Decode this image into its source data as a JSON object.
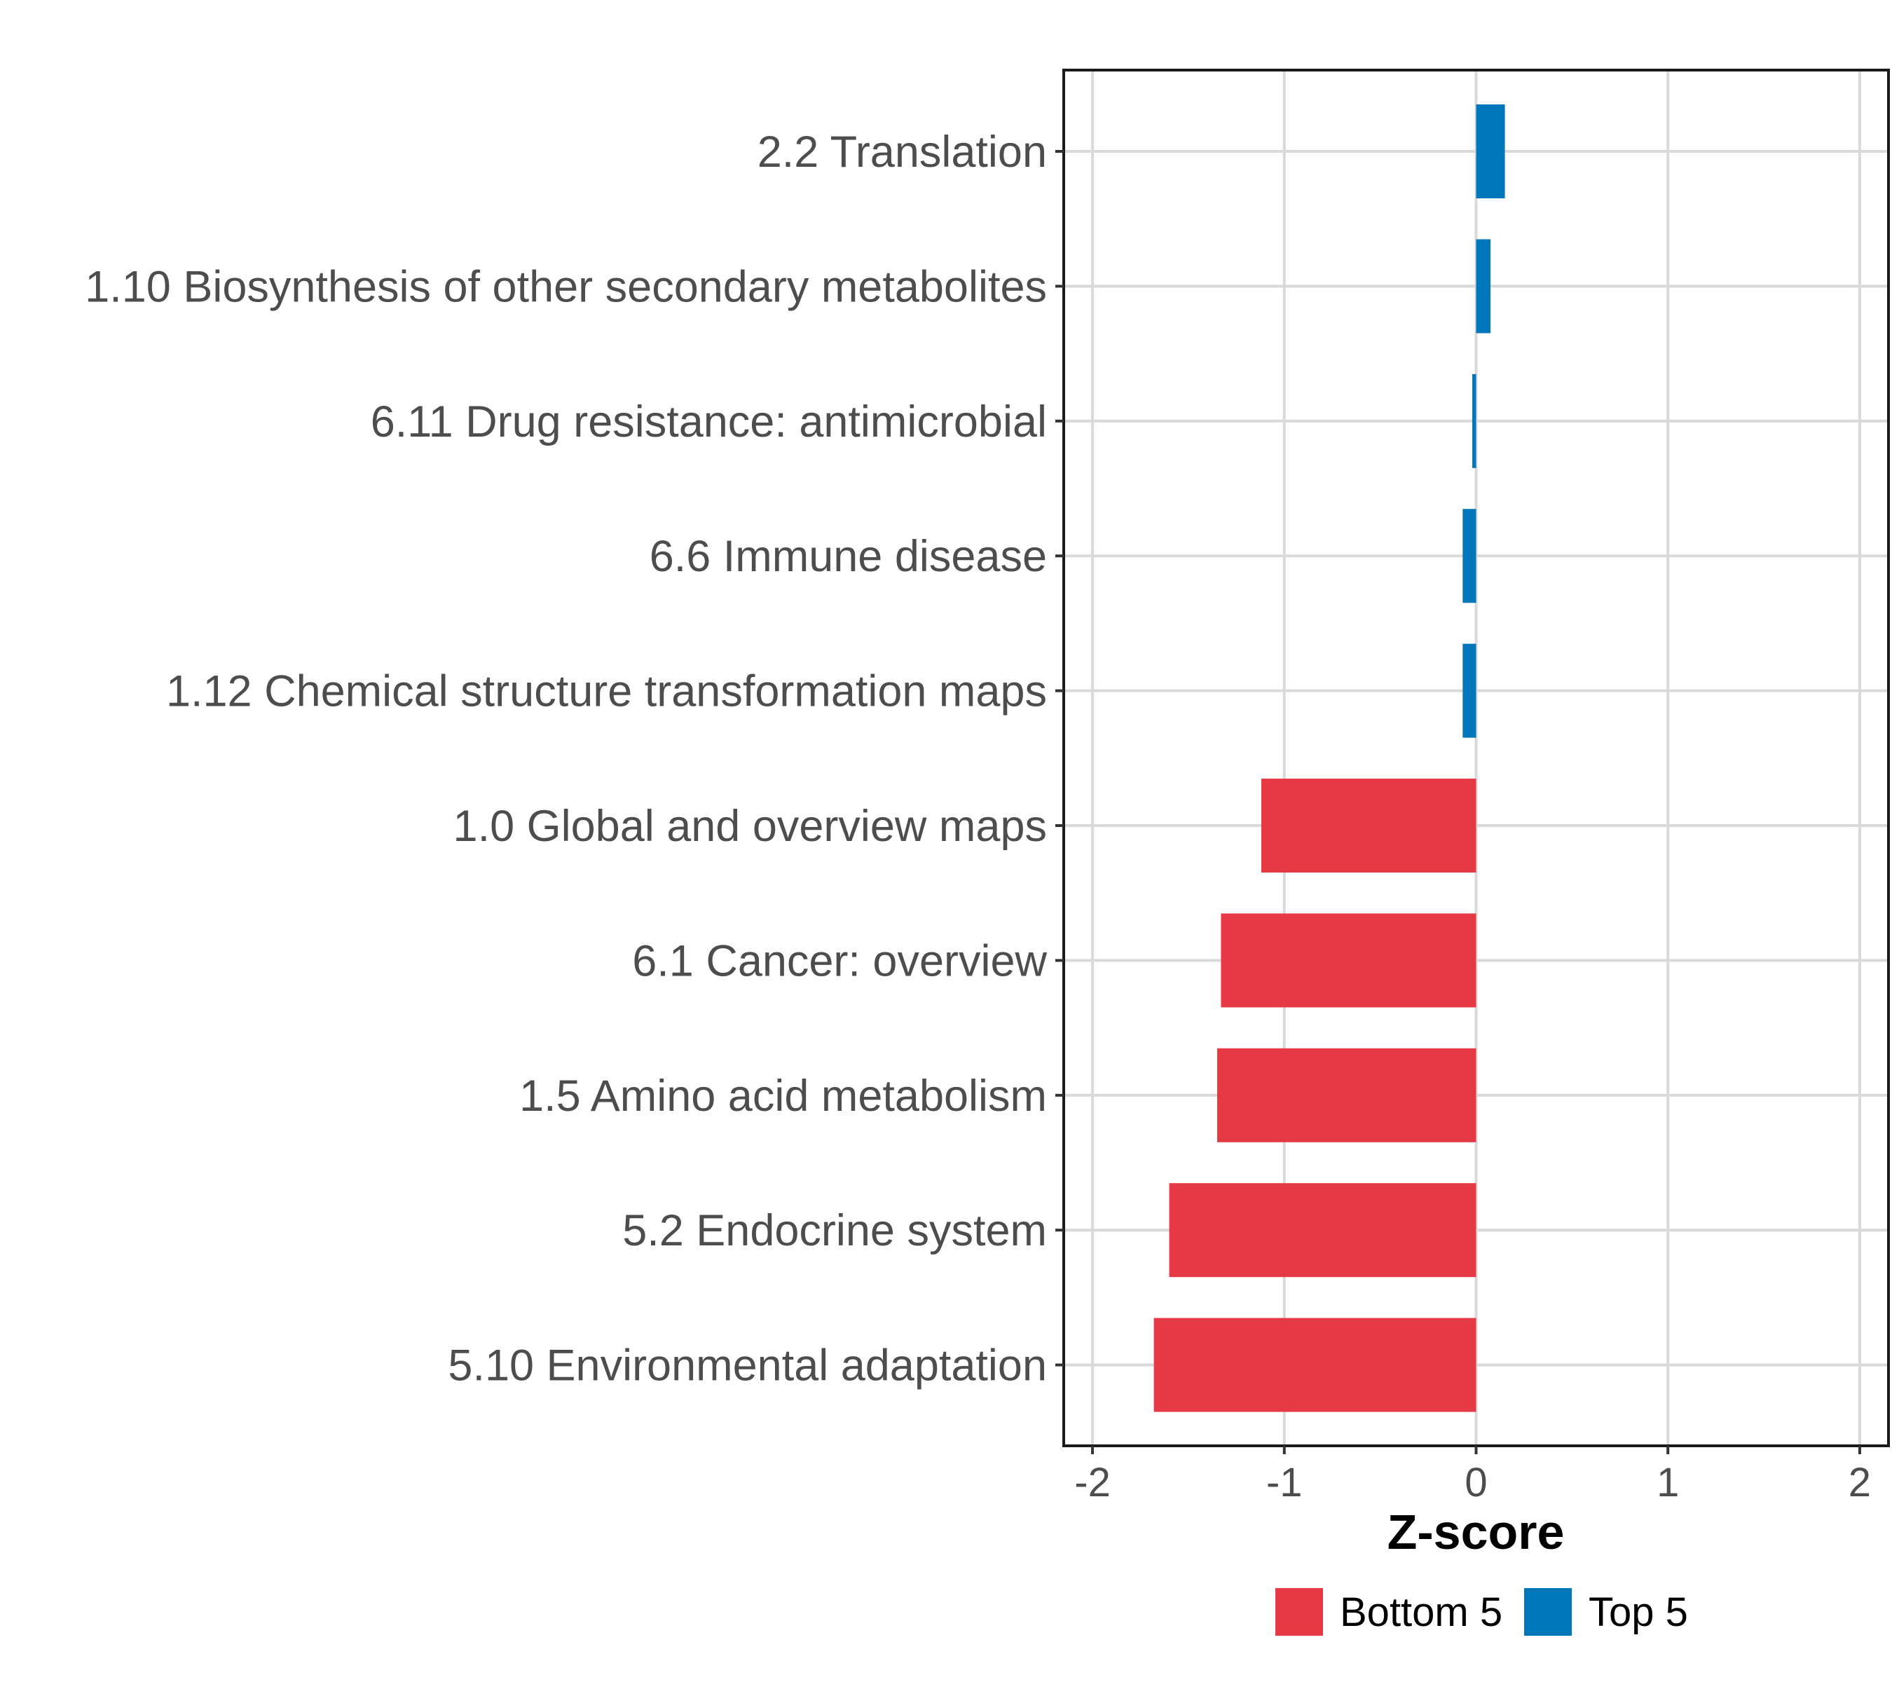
{
  "chart_data": {
    "type": "bar",
    "orientation": "horizontal",
    "title": "",
    "xlabel": "Z-score",
    "ylabel": "",
    "xlim": [
      -2.15,
      2.15
    ],
    "x_ticks": [
      -2,
      -1,
      0,
      1,
      2
    ],
    "x_tick_labels": [
      "-2",
      "-1",
      "0",
      "1",
      "2"
    ],
    "grid": true,
    "legend_position": "bottom",
    "categories": [
      "2.2 Translation",
      "1.10 Biosynthesis of other secondary metabolites",
      "6.11 Drug resistance: antimicrobial",
      "6.6 Immune disease",
      "1.12 Chemical structure transformation maps",
      "1.0 Global and overview maps",
      "6.1 Cancer: overview",
      "1.5 Amino acid metabolism",
      "5.2 Endocrine system",
      "5.10 Environmental adaptation"
    ],
    "values": [
      0.15,
      0.075,
      -0.02,
      -0.07,
      -0.07,
      -1.12,
      -1.33,
      -1.35,
      -1.6,
      -1.68
    ],
    "groups": [
      "Top 5",
      "Top 5",
      "Top 5",
      "Top 5",
      "Top 5",
      "Bottom 5",
      "Bottom 5",
      "Bottom 5",
      "Bottom 5",
      "Bottom 5"
    ],
    "legend": [
      {
        "name": "Bottom 5",
        "color": "#e63946"
      },
      {
        "name": "Top 5",
        "color": "#0077bb"
      }
    ]
  }
}
